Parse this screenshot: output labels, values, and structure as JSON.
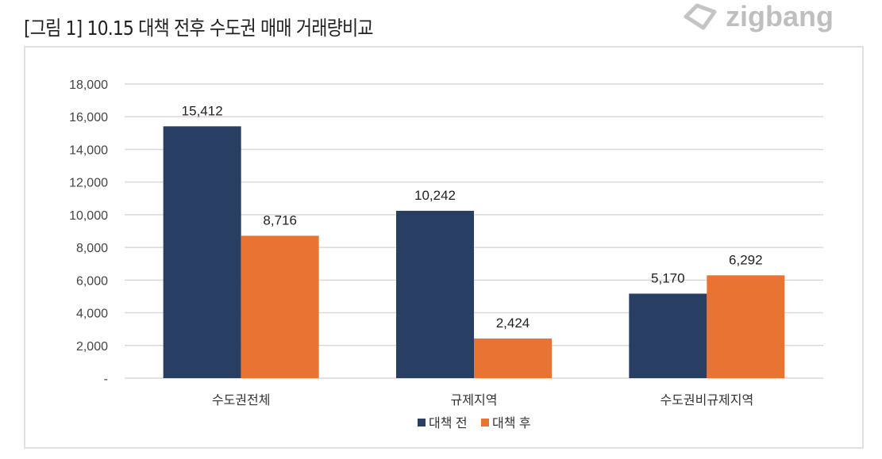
{
  "title": "[그림 1] 10.15 대책 전후 수도권 매매 거래량비교",
  "logo": "zigbang",
  "chart_data": {
    "type": "bar",
    "categories": [
      "수도권전체",
      "규제지역",
      "수도권비규제지역"
    ],
    "series": [
      {
        "name": "대책 전",
        "color": "#283f63",
        "values": [
          15412,
          10242,
          5170
        ],
        "labels": [
          "15,412",
          "10,242",
          "5,170"
        ]
      },
      {
        "name": "대책 후",
        "color": "#e97333",
        "values": [
          8716,
          2424,
          6292
        ],
        "labels": [
          "8,716",
          "2,424",
          "6,292"
        ]
      }
    ],
    "ylim": [
      0,
      18000
    ],
    "yticks": [
      0,
      2000,
      4000,
      6000,
      8000,
      10000,
      12000,
      14000,
      16000,
      18000
    ],
    "ytick_labels": [
      "-",
      "2,000",
      "4,000",
      "6,000",
      "8,000",
      "10,000",
      "12,000",
      "14,000",
      "16,000",
      "18,000"
    ],
    "grid": true,
    "legend": "bottom-center",
    "xlabel": "",
    "ylabel": ""
  }
}
